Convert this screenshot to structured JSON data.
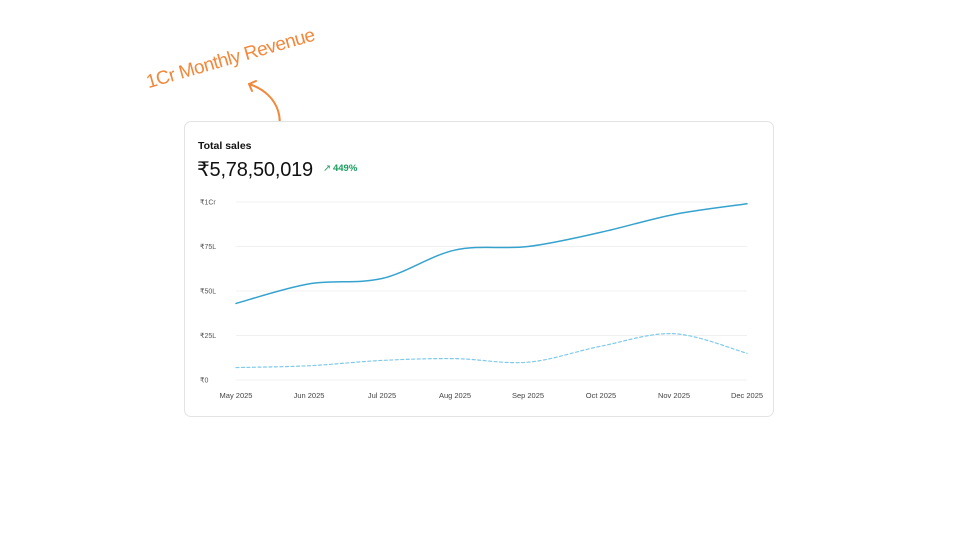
{
  "annotation": {
    "text": "1Cr Monthly Revenue"
  },
  "card": {
    "title": "Total sales",
    "total_value": "₹5,78,50,019",
    "growth": "449%",
    "growth_icon": "arrow-up-right-icon"
  },
  "colors": {
    "accent": "#f2883c",
    "current_line": "#36a3cf",
    "previous_line": "#7fcaea",
    "growth": "#1a9e5f"
  },
  "chart_data": {
    "type": "line",
    "x": [
      "May 2025",
      "Jun 2025",
      "Jul 2025",
      "Aug 2025",
      "Sep 2025",
      "Oct 2025",
      "Nov 2025",
      "Dec 2025"
    ],
    "y_ticks": [
      "₹0",
      "₹25L",
      "₹50L",
      "₹75L",
      "₹1Cr"
    ],
    "y_tick_values": [
      0,
      25,
      50,
      75,
      100
    ],
    "ylim": [
      0,
      100
    ],
    "y_unit": "lakh",
    "grid": true,
    "series": [
      {
        "style": "solid",
        "values": [
          43,
          54,
          57,
          73,
          75,
          83,
          93,
          99
        ]
      },
      {
        "style": "dashed",
        "values": [
          7,
          8,
          11,
          12,
          10,
          19,
          26,
          15
        ]
      }
    ]
  }
}
